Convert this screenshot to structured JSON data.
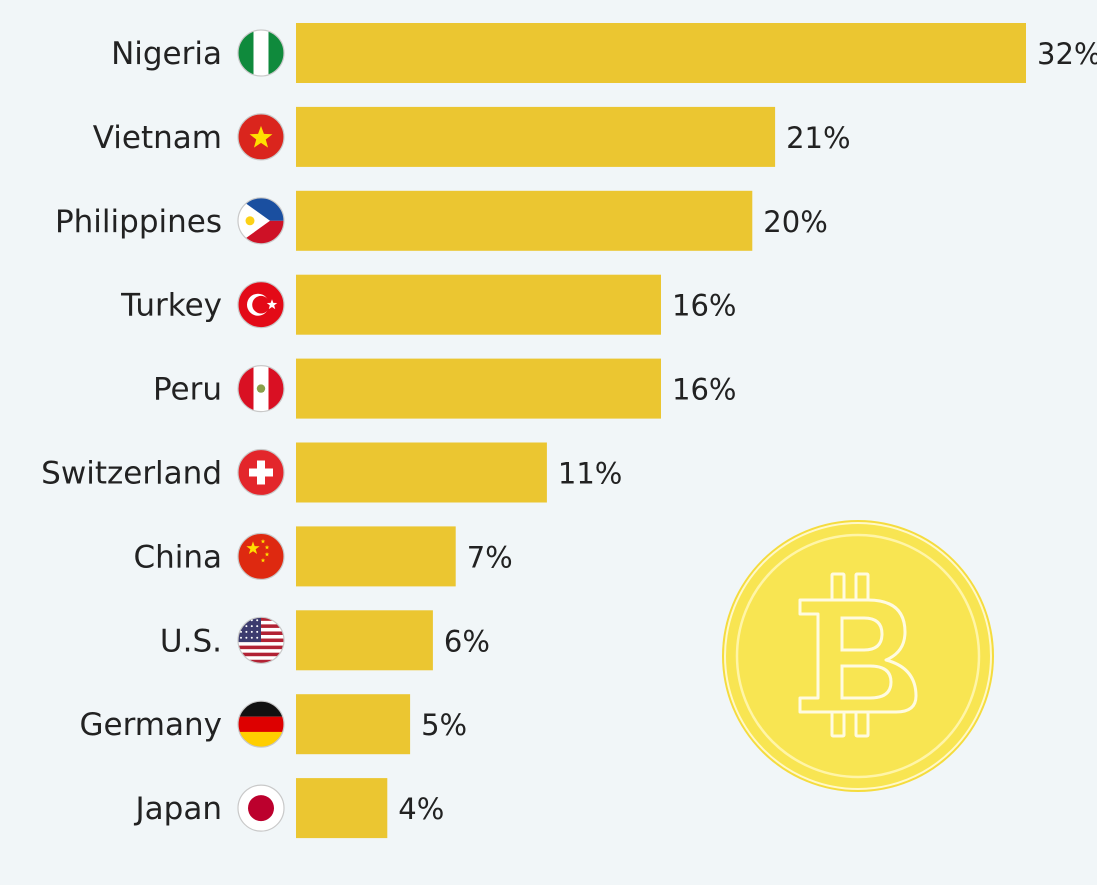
{
  "chart_data": {
    "type": "bar",
    "orientation": "horizontal",
    "categories": [
      "Nigeria",
      "Vietnam",
      "Philippines",
      "Turkey",
      "Peru",
      "Switzerland",
      "China",
      "U.S.",
      "Germany",
      "Japan"
    ],
    "values": [
      32,
      21,
      20,
      16,
      16,
      11,
      7,
      6,
      5,
      4
    ],
    "value_labels": [
      "32%",
      "21%",
      "20%",
      "16%",
      "16%",
      "11%",
      "7%",
      "6%",
      "5%",
      "4%"
    ],
    "flags": [
      "nigeria-flag-icon",
      "vietnam-flag-icon",
      "philippines-flag-icon",
      "turkey-flag-icon",
      "peru-flag-icon",
      "switzerland-flag-icon",
      "china-flag-icon",
      "us-flag-icon",
      "germany-flag-icon",
      "japan-flag-icon"
    ],
    "xlim": [
      0,
      32
    ],
    "bar_color": "#ebc631",
    "grid": false,
    "illustration": "bitcoin-coin-icon",
    "coin_color": "#f7e24f"
  },
  "footnote": {
    "text": ""
  }
}
